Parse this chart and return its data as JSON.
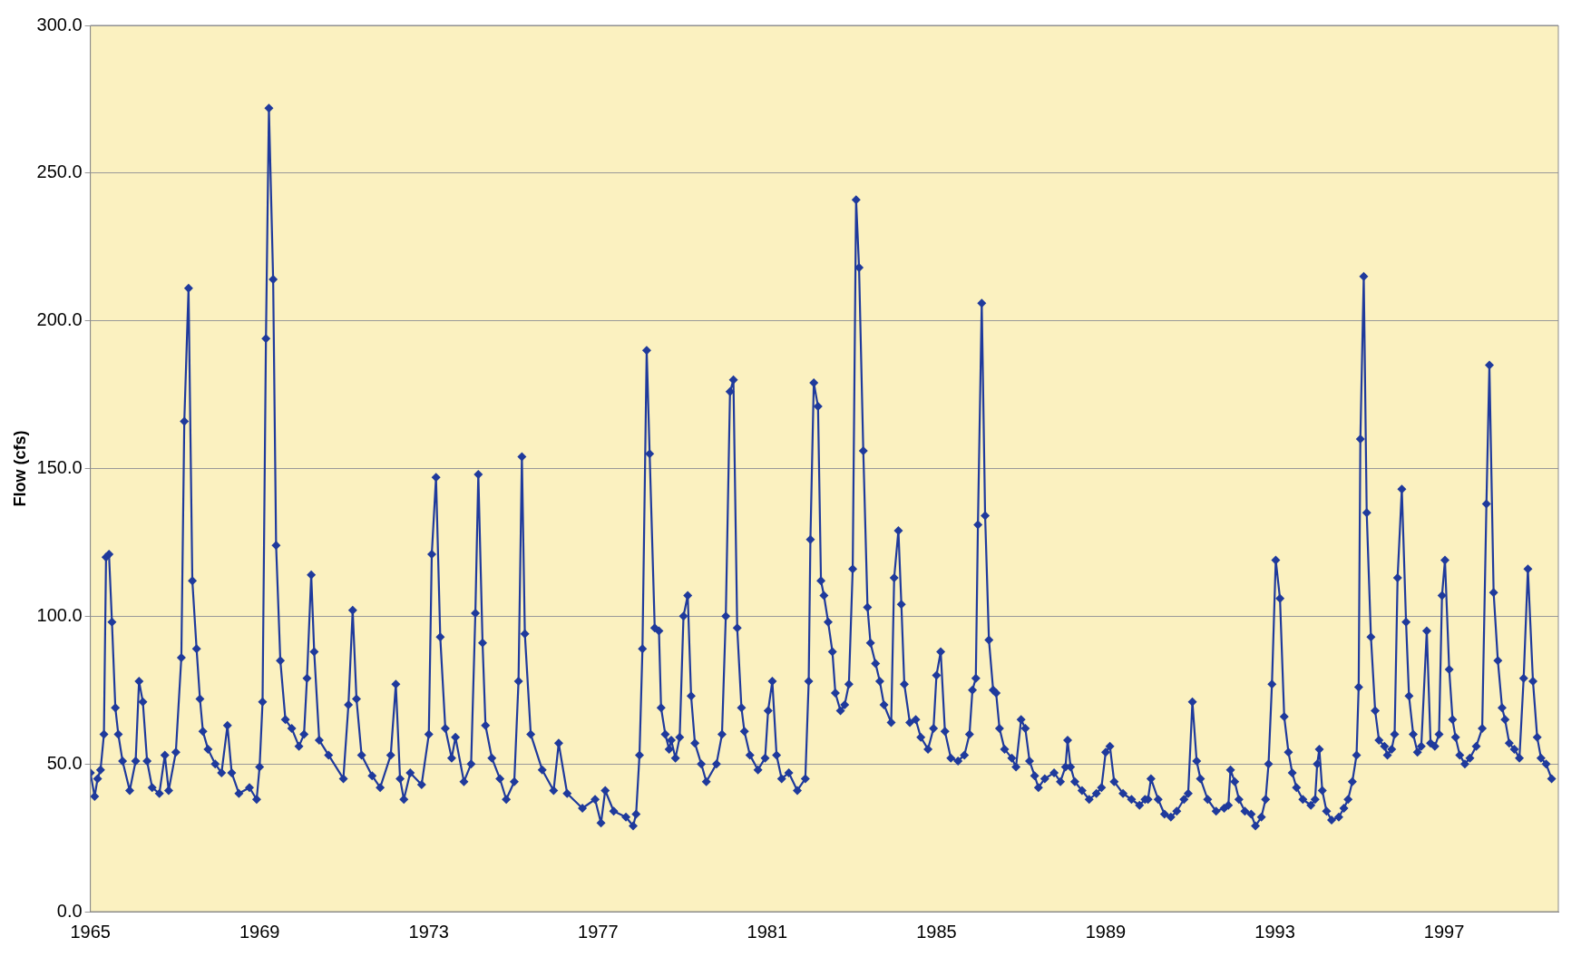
{
  "chart_data": {
    "type": "line",
    "ylabel": "Flow (cfs)",
    "xlim": [
      1965,
      1999.7
    ],
    "ylim": [
      0,
      300
    ],
    "xticks": [
      1965,
      1969,
      1973,
      1977,
      1981,
      1985,
      1989,
      1993,
      1997
    ],
    "yticks": [
      {
        "value": 0,
        "label": "0.0"
      },
      {
        "value": 50,
        "label": "50.0"
      },
      {
        "value": 100,
        "label": "100.0"
      },
      {
        "value": 150,
        "label": "150.0"
      },
      {
        "value": 200,
        "label": "200.0"
      },
      {
        "value": 250,
        "label": "250.0"
      },
      {
        "value": 300,
        "label": "300.0"
      }
    ],
    "grid": "y",
    "legend": false,
    "marker": "diamond",
    "line_style": "solid",
    "series": [
      {
        "color": "#1f3a9c",
        "x": [
          1965.0,
          1965.1,
          1965.17,
          1965.24,
          1965.32,
          1965.37,
          1965.44,
          1965.51,
          1965.59,
          1965.66,
          1965.76,
          1965.93,
          1966.07,
          1966.15,
          1966.24,
          1966.34,
          1966.46,
          1966.63,
          1966.76,
          1966.85,
          1967.02,
          1967.15,
          1967.22,
          1967.32,
          1967.41,
          1967.51,
          1967.59,
          1967.66,
          1967.78,
          1967.95,
          1968.1,
          1968.24,
          1968.34,
          1968.51,
          1968.76,
          1968.93,
          1969.0,
          1969.07,
          1969.15,
          1969.22,
          1969.32,
          1969.39,
          1969.49,
          1969.61,
          1969.76,
          1969.93,
          1970.05,
          1970.12,
          1970.22,
          1970.29,
          1970.41,
          1970.63,
          1970.98,
          1971.1,
          1971.2,
          1971.29,
          1971.41,
          1971.66,
          1971.85,
          1972.1,
          1972.22,
          1972.32,
          1972.41,
          1972.56,
          1972.83,
          1973.0,
          1973.07,
          1973.17,
          1973.27,
          1973.39,
          1973.54,
          1973.63,
          1973.83,
          1974.0,
          1974.1,
          1974.17,
          1974.27,
          1974.34,
          1974.49,
          1974.68,
          1974.83,
          1975.02,
          1975.12,
          1975.2,
          1975.27,
          1975.41,
          1975.68,
          1975.95,
          1976.07,
          1976.27,
          1976.63,
          1976.93,
          1977.07,
          1977.17,
          1977.37,
          1977.66,
          1977.83,
          1977.9,
          1977.98,
          1978.05,
          1978.15,
          1978.22,
          1978.34,
          1978.44,
          1978.49,
          1978.59,
          1978.68,
          1978.73,
          1978.83,
          1978.93,
          1979.02,
          1979.12,
          1979.2,
          1979.29,
          1979.44,
          1979.56,
          1979.8,
          1979.93,
          1980.02,
          1980.12,
          1980.2,
          1980.29,
          1980.39,
          1980.46,
          1980.59,
          1980.78,
          1980.95,
          1981.02,
          1981.12,
          1981.22,
          1981.34,
          1981.51,
          1981.71,
          1981.9,
          1981.98,
          1982.02,
          1982.1,
          1982.2,
          1982.27,
          1982.34,
          1982.44,
          1982.54,
          1982.61,
          1982.73,
          1982.83,
          1982.93,
          1983.02,
          1983.1,
          1983.17,
          1983.27,
          1983.37,
          1983.44,
          1983.56,
          1983.66,
          1983.76,
          1983.93,
          1984.0,
          1984.1,
          1984.17,
          1984.24,
          1984.37,
          1984.51,
          1984.63,
          1984.8,
          1984.93,
          1985.0,
          1985.1,
          1985.2,
          1985.34,
          1985.51,
          1985.66,
          1985.78,
          1985.85,
          1985.93,
          1985.98,
          1986.07,
          1986.15,
          1986.24,
          1986.34,
          1986.41,
          1986.49,
          1986.61,
          1986.78,
          1986.88,
          1987.0,
          1987.1,
          1987.2,
          1987.32,
          1987.41,
          1987.56,
          1987.78,
          1987.93,
          1988.05,
          1988.1,
          1988.17,
          1988.27,
          1988.44,
          1988.61,
          1988.78,
          1988.9,
          1989.0,
          1989.1,
          1989.2,
          1989.41,
          1989.61,
          1989.8,
          1989.93,
          1990.0,
          1990.07,
          1990.24,
          1990.39,
          1990.54,
          1990.68,
          1990.85,
          1990.95,
          1991.05,
          1991.15,
          1991.24,
          1991.41,
          1991.61,
          1991.8,
          1991.9,
          1991.95,
          1992.05,
          1992.15,
          1992.29,
          1992.44,
          1992.54,
          1992.68,
          1992.78,
          1992.85,
          1992.93,
          1993.02,
          1993.12,
          1993.22,
          1993.32,
          1993.41,
          1993.51,
          1993.66,
          1993.85,
          1993.95,
          1994.0,
          1994.05,
          1994.12,
          1994.22,
          1994.34,
          1994.51,
          1994.63,
          1994.73,
          1994.83,
          1994.93,
          1994.98,
          1995.02,
          1995.1,
          1995.17,
          1995.27,
          1995.37,
          1995.46,
          1995.59,
          1995.66,
          1995.76,
          1995.83,
          1995.9,
          1996.0,
          1996.1,
          1996.17,
          1996.27,
          1996.37,
          1996.46,
          1996.59,
          1996.68,
          1996.78,
          1996.88,
          1996.95,
          1997.02,
          1997.12,
          1997.2,
          1997.27,
          1997.37,
          1997.49,
          1997.61,
          1997.76,
          1997.9,
          1998.0,
          1998.07,
          1998.17,
          1998.27,
          1998.37,
          1998.44,
          1998.54,
          1998.66,
          1998.78,
          1998.88,
          1998.98,
          1999.1,
          1999.2,
          1999.29,
          1999.41,
          1999.54
        ],
        "values": [
          47,
          39,
          45,
          48,
          60,
          120,
          121,
          98,
          69,
          60,
          51,
          41,
          51,
          78,
          71,
          51,
          42,
          40,
          53,
          41,
          54,
          86,
          166,
          211,
          112,
          89,
          72,
          61,
          55,
          50,
          47,
          63,
          47,
          40,
          42,
          38,
          49,
          71,
          194,
          272,
          214,
          124,
          85,
          65,
          62,
          56,
          60,
          79,
          114,
          88,
          58,
          53,
          45,
          70,
          102,
          72,
          53,
          46,
          42,
          53,
          77,
          45,
          38,
          47,
          43,
          60,
          121,
          147,
          93,
          62,
          52,
          59,
          44,
          50,
          101,
          148,
          91,
          63,
          52,
          45,
          38,
          44,
          78,
          154,
          94,
          60,
          48,
          41,
          57,
          40,
          35,
          38,
          30,
          41,
          34,
          32,
          29,
          33,
          53,
          89,
          190,
          155,
          96,
          95,
          69,
          60,
          55,
          58,
          52,
          59,
          100,
          107,
          73,
          57,
          50,
          44,
          50,
          60,
          100,
          176,
          180,
          96,
          69,
          61,
          53,
          48,
          52,
          68,
          78,
          53,
          45,
          47,
          41,
          45,
          78,
          126,
          179,
          171,
          112,
          107,
          98,
          88,
          74,
          68,
          70,
          77,
          116,
          241,
          218,
          156,
          103,
          91,
          84,
          78,
          70,
          64,
          113,
          129,
          104,
          77,
          64,
          65,
          59,
          55,
          62,
          80,
          88,
          61,
          52,
          51,
          53,
          60,
          75,
          79,
          131,
          206,
          134,
          92,
          75,
          74,
          62,
          55,
          52,
          49,
          65,
          62,
          51,
          46,
          42,
          45,
          47,
          44,
          49,
          58,
          49,
          44,
          41,
          38,
          40,
          42,
          54,
          56,
          44,
          40,
          38,
          36,
          38,
          38,
          45,
          38,
          33,
          32,
          34,
          38,
          40,
          71,
          51,
          45,
          38,
          34,
          35,
          36,
          48,
          44,
          38,
          34,
          33,
          29,
          32,
          38,
          50,
          77,
          119,
          106,
          66,
          54,
          47,
          42,
          38,
          36,
          38,
          50,
          55,
          41,
          34,
          31,
          32,
          35,
          38,
          44,
          53,
          76,
          160,
          215,
          135,
          93,
          68,
          58,
          56,
          53,
          55,
          60,
          113,
          143,
          98,
          73,
          60,
          54,
          56,
          95,
          57,
          56,
          60,
          107,
          119,
          82,
          65,
          59,
          53,
          50,
          52,
          56,
          62,
          138,
          185,
          108,
          85,
          69,
          65,
          57,
          55,
          52,
          79,
          116,
          78,
          59,
          52,
          50,
          45
        ]
      }
    ]
  }
}
